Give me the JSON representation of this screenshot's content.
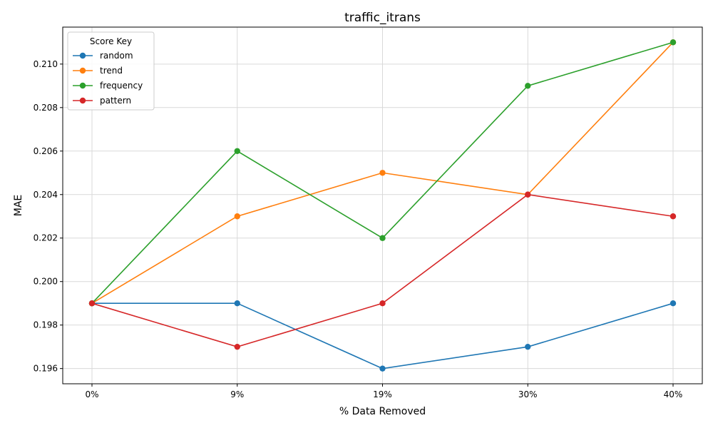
{
  "chart_data": {
    "type": "line",
    "title": "traffic_itrans",
    "xlabel": "% Data Removed",
    "ylabel": "MAE",
    "categories": [
      "0%",
      "9%",
      "19%",
      "30%",
      "40%"
    ],
    "ylim": [
      0.1953,
      0.2117
    ],
    "yticks": [
      "0.196",
      "0.198",
      "0.200",
      "0.202",
      "0.204",
      "0.206",
      "0.208",
      "0.210"
    ],
    "ytick_values": [
      0.196,
      0.198,
      0.2,
      0.202,
      0.204,
      0.206,
      0.208,
      0.21
    ],
    "grid": true,
    "legend": {
      "title": "Score Key",
      "placement": "top-left"
    },
    "series": [
      {
        "name": "random",
        "color": "#1f77b4",
        "values": [
          0.199,
          0.199,
          0.196,
          0.197,
          0.199
        ]
      },
      {
        "name": "trend",
        "color": "#ff7f0e",
        "values": [
          0.199,
          0.203,
          0.205,
          0.204,
          0.211
        ]
      },
      {
        "name": "frequency",
        "color": "#2ca02c",
        "values": [
          0.199,
          0.206,
          0.202,
          0.209,
          0.211
        ]
      },
      {
        "name": "pattern",
        "color": "#d62728",
        "values": [
          0.199,
          0.197,
          0.199,
          0.204,
          0.203
        ]
      }
    ]
  }
}
